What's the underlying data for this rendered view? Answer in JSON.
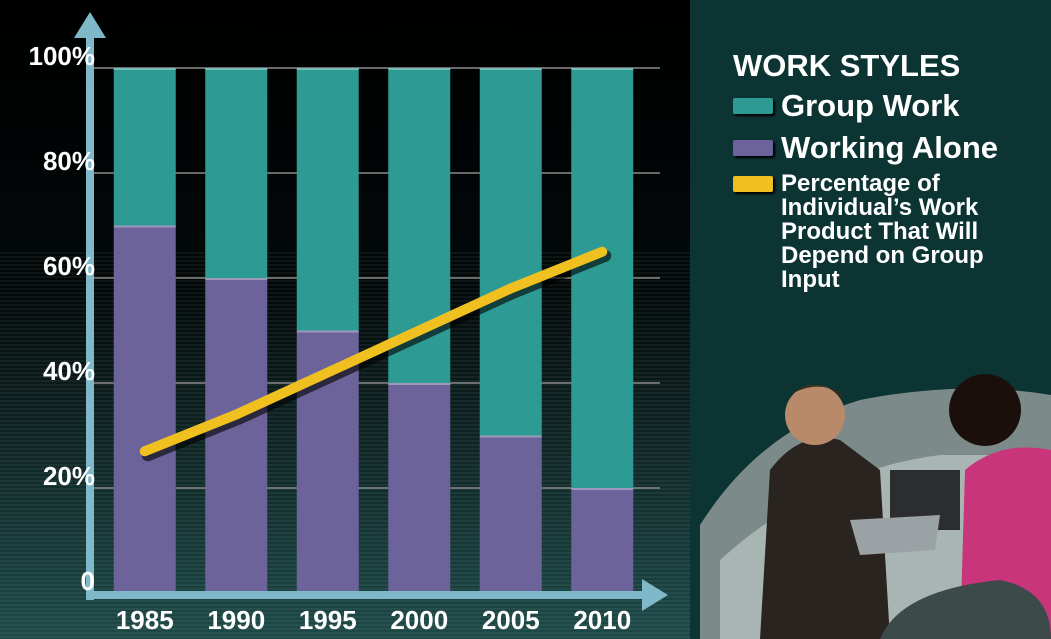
{
  "chart_data": {
    "type": "bar",
    "stacked": true,
    "categories": [
      "1985",
      "1990",
      "1995",
      "2000",
      "2005",
      "2010"
    ],
    "series": [
      {
        "name": "Working Alone",
        "color": "#6b6399",
        "values": [
          70,
          60,
          50,
          40,
          30,
          20
        ]
      },
      {
        "name": "Group Work",
        "color": "#2e9a94",
        "values": [
          30,
          40,
          50,
          60,
          70,
          80
        ]
      },
      {
        "name": "Percentage of Individual’s Work Product That Will Depend on Group Input",
        "color": "#f0c020",
        "type": "line",
        "values": [
          27,
          34,
          42,
          50,
          58,
          65
        ]
      }
    ],
    "ylim": [
      0,
      100
    ],
    "yticks": [
      0,
      {
        "value": 20,
        "label": "20%"
      },
      {
        "value": 40,
        "label": "40%"
      },
      {
        "value": 60,
        "label": "60%"
      },
      {
        "value": 80,
        "label": "80%"
      },
      {
        "value": 100,
        "label": "100%"
      }
    ],
    "grid": true,
    "legend": {
      "title": "WORK STYLES",
      "position": "right"
    }
  }
}
